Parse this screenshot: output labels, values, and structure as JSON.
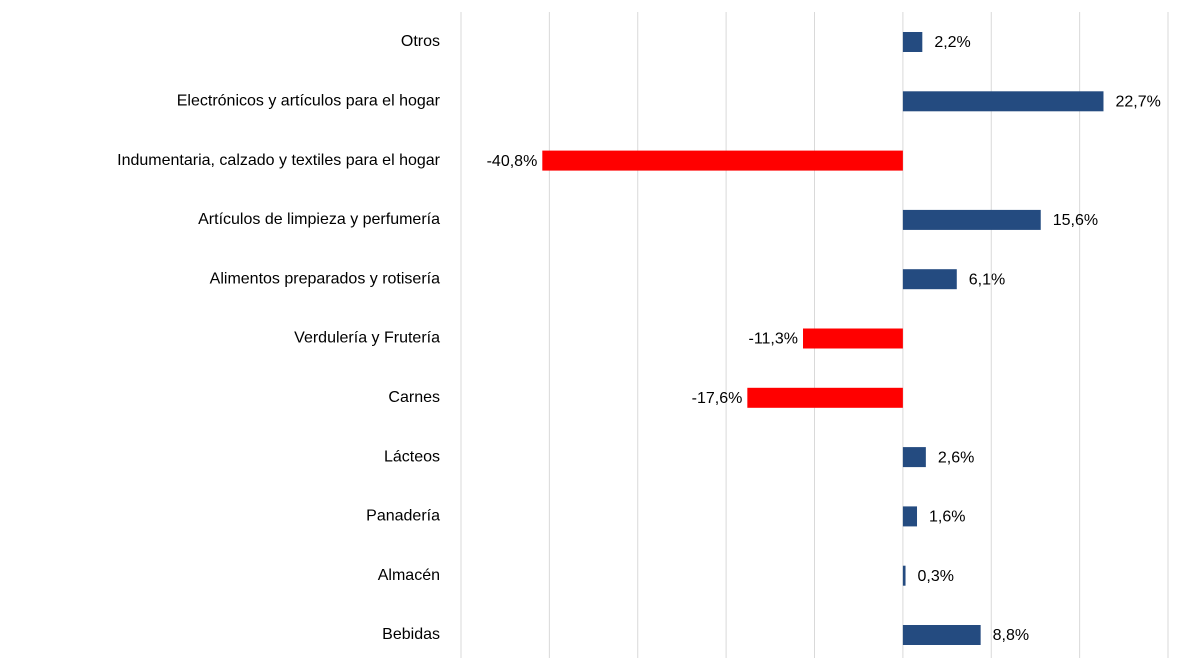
{
  "chart_data": {
    "type": "hbar",
    "categories": [
      "Otros",
      "Electrónicos y artículos para el hogar",
      "Indumentaria, calzado y textiles para el hogar",
      "Artículos de limpieza y perfumería",
      "Alimentos preparados y rotisería",
      "Verdulería y Frutería",
      "Carnes",
      "Lácteos",
      "Panadería",
      "Almacén",
      "Bebidas"
    ],
    "values": [
      2.2,
      22.7,
      -40.8,
      15.6,
      6.1,
      -11.3,
      -17.6,
      2.6,
      1.6,
      0.3,
      8.8
    ],
    "value_labels": [
      "2,2%",
      "22,7%",
      "-40,8%",
      "15,6%",
      "6,1%",
      "-11,3%",
      "-17,6%",
      "2,6%",
      "1,6%",
      "0,3%",
      "8,8%"
    ],
    "color_positive": "#244b80",
    "color_negative": "#ff0000",
    "xlim": [
      -50,
      30
    ],
    "xticks": [
      -50,
      -40,
      -30,
      -20,
      -10,
      0,
      10,
      20,
      30
    ],
    "grid": true
  }
}
